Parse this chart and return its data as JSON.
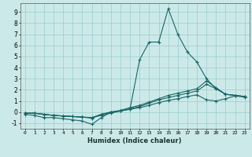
{
  "xlabel": "Humidex (Indice chaleur)",
  "xlim": [
    -0.5,
    23.5
  ],
  "ylim": [
    -1.5,
    9.8
  ],
  "yticks": [
    -1,
    0,
    1,
    2,
    3,
    4,
    5,
    6,
    7,
    8,
    9
  ],
  "xticks": [
    0,
    1,
    2,
    3,
    4,
    5,
    6,
    7,
    8,
    9,
    10,
    11,
    12,
    13,
    14,
    15,
    16,
    17,
    18,
    19,
    20,
    21,
    22,
    23
  ],
  "background_color": "#cce9e9",
  "grid_color": "#99cccc",
  "line_color": "#1a6666",
  "curves": [
    {
      "x": [
        0,
        1,
        2,
        3,
        4,
        5,
        6,
        7,
        8,
        9,
        10,
        11,
        12,
        13,
        14,
        15,
        16,
        17,
        18,
        19,
        20,
        21,
        22,
        23
      ],
      "y": [
        -0.2,
        -0.3,
        -0.5,
        -0.5,
        -0.6,
        -0.7,
        -0.8,
        -1.1,
        -0.5,
        0.0,
        0.1,
        0.3,
        4.7,
        6.3,
        6.3,
        9.3,
        7.0,
        5.4,
        4.5,
        3.0,
        2.1,
        1.6,
        1.5,
        1.4
      ]
    },
    {
      "x": [
        0,
        1,
        2,
        3,
        4,
        5,
        6,
        7,
        8,
        9,
        10,
        11,
        12,
        13,
        14,
        15,
        16,
        17,
        18,
        19,
        20,
        21,
        22,
        23
      ],
      "y": [
        -0.1,
        -0.1,
        -0.2,
        -0.3,
        -0.35,
        -0.4,
        -0.45,
        -0.5,
        -0.3,
        -0.1,
        0.1,
        0.3,
        0.5,
        0.8,
        1.1,
        1.3,
        1.5,
        1.7,
        1.9,
        2.5,
        2.1,
        1.6,
        1.5,
        1.4
      ]
    },
    {
      "x": [
        0,
        1,
        2,
        3,
        4,
        5,
        6,
        7,
        8,
        9,
        10,
        11,
        12,
        13,
        14,
        15,
        16,
        17,
        18,
        19,
        20,
        21,
        22,
        23
      ],
      "y": [
        -0.1,
        -0.1,
        -0.2,
        -0.3,
        -0.35,
        -0.4,
        -0.45,
        -0.5,
        -0.2,
        0.0,
        0.15,
        0.4,
        0.6,
        0.9,
        1.2,
        1.5,
        1.7,
        1.9,
        2.1,
        2.8,
        2.2,
        1.6,
        1.5,
        1.4
      ]
    },
    {
      "x": [
        0,
        1,
        2,
        3,
        4,
        5,
        6,
        7,
        8,
        9,
        10,
        11,
        12,
        13,
        14,
        15,
        16,
        17,
        18,
        19,
        20,
        21,
        22,
        23
      ],
      "y": [
        -0.1,
        -0.1,
        -0.2,
        -0.3,
        -0.35,
        -0.4,
        -0.45,
        -0.55,
        -0.2,
        0.0,
        0.1,
        0.25,
        0.4,
        0.6,
        0.85,
        1.05,
        1.2,
        1.4,
        1.55,
        1.1,
        1.0,
        1.2,
        1.45,
        1.35
      ]
    }
  ]
}
